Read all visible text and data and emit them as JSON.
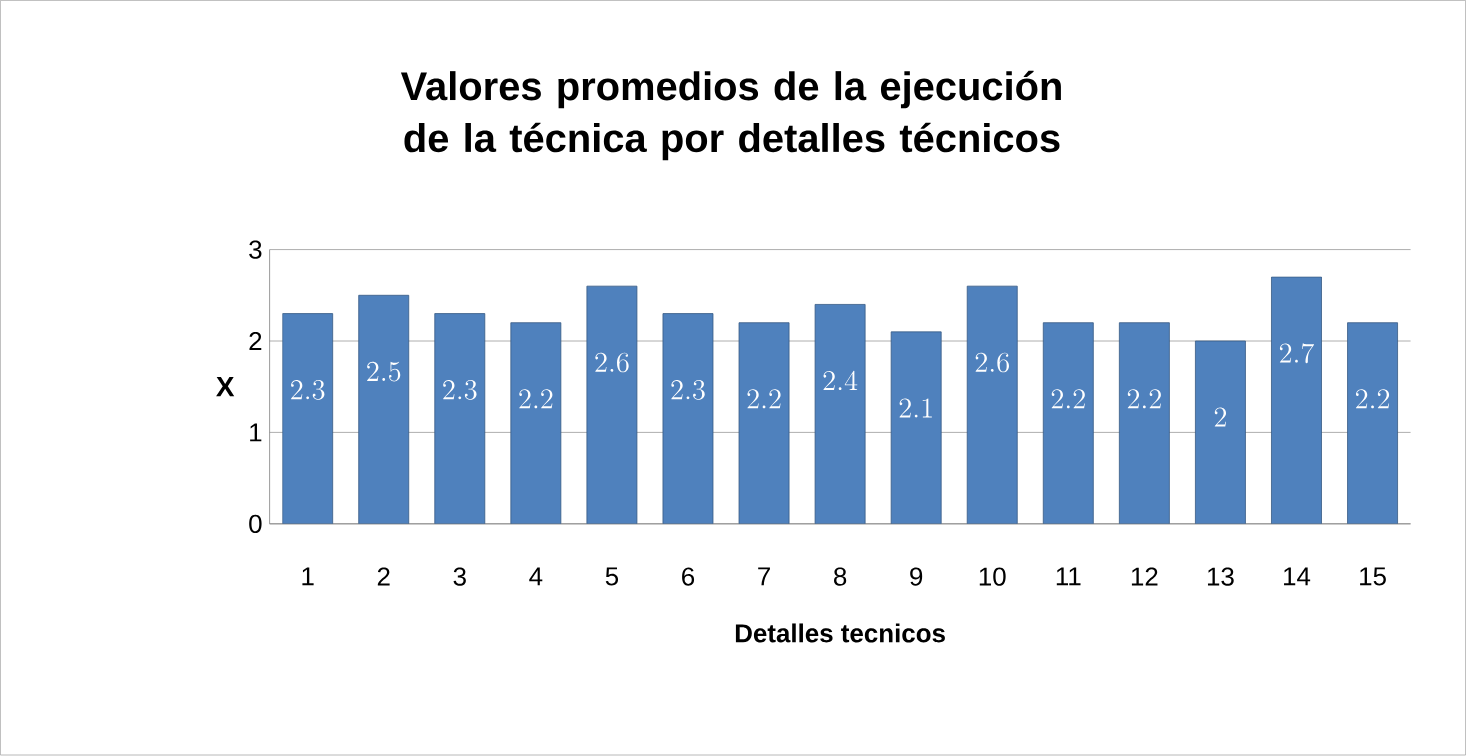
{
  "chart_data": {
    "type": "bar",
    "title": "Valores promedios de la ejecución de la técnica por detalles técnicos",
    "xlabel": "Detalles tecnicos",
    "ylabel": "X",
    "categories": [
      "1",
      "2",
      "3",
      "4",
      "5",
      "6",
      "7",
      "8",
      "9",
      "10",
      "11",
      "12",
      "13",
      "14",
      "15"
    ],
    "values": [
      2.3,
      2.5,
      2.3,
      2.2,
      2.6,
      2.3,
      2.2,
      2.4,
      2.1,
      2.6,
      2.2,
      2.2,
      2,
      2.7,
      2.2
    ],
    "color": "#4f81bd",
    "ylim": [
      0,
      3
    ],
    "yticks": [
      0,
      1,
      2,
      3
    ],
    "grid": "y",
    "data_labels": true
  }
}
